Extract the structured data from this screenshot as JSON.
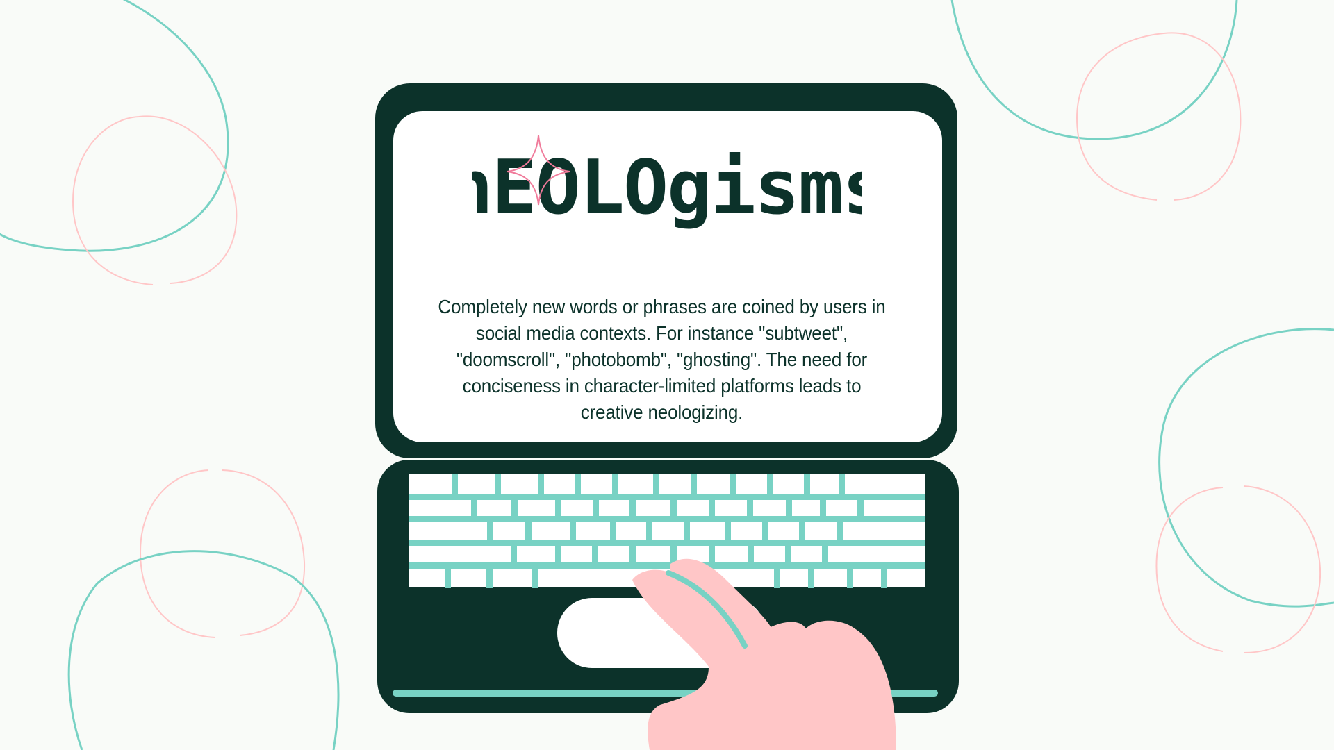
{
  "slide": {
    "title": "nEOLOgisms",
    "description": "Completely new words or phrases are coined by users in social media contexts. For instance \"subtweet\", \"doomscroll\", \"photobomb\", \"ghosting\". The need for conciseness in character-limited platforms leads to creative neologizing."
  },
  "colors": {
    "background": "#f9fbf8",
    "laptop": "#0c322a",
    "keys": "#78d2c4",
    "screen": "#ffffff",
    "hand": "#ffc6c7",
    "accent_pink": "#f07a9a"
  },
  "icons": {
    "laptop": "laptop-illustration",
    "hand": "pointing-hand-illustration",
    "sparkle": "sparkle-icon"
  }
}
